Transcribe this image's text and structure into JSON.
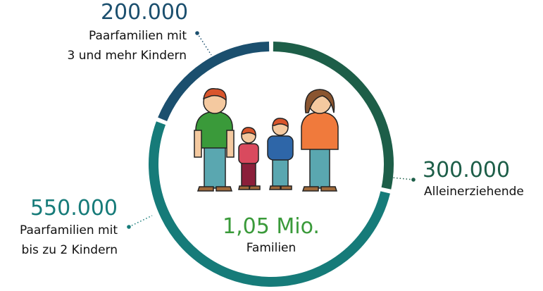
{
  "chart_data": {
    "type": "donut",
    "categories": [
      "Paarfamilien mit\n3 und mehr Kindern",
      "Alleinerziehende",
      "Paarfamilien mit\nbis zu 2 Kindern"
    ],
    "values": [
      200000,
      300000,
      550000
    ],
    "value_labels": [
      "200.000",
      "300.000",
      "550.000"
    ],
    "colors": [
      "#1b4f6e",
      "#1d5e48",
      "#167b79"
    ],
    "total": 1050000,
    "total_label": "1,05 Mio.",
    "total_caption": "Familien"
  }
}
